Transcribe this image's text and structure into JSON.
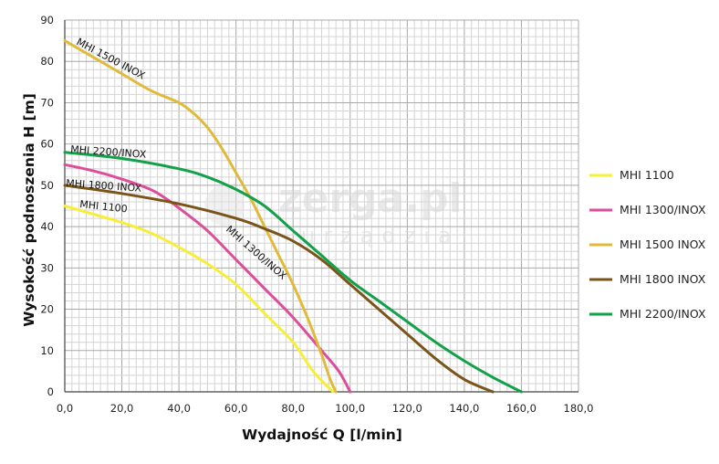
{
  "chart_data": {
    "type": "line",
    "title": "",
    "xlabel": "Wydajność Q [l/min]",
    "ylabel": "Wysokość podnoszenia H [m]",
    "xlim": [
      0,
      180
    ],
    "ylim": [
      0,
      90
    ],
    "x_ticks": [
      0,
      20,
      40,
      60,
      80,
      100,
      120,
      140,
      160,
      180
    ],
    "x_tick_labels": [
      "0,0",
      "20,0",
      "40,0",
      "60,0",
      "80,0",
      "100,0",
      "120,0",
      "140,0",
      "160,0",
      "180,0"
    ],
    "y_ticks": [
      0,
      10,
      20,
      30,
      40,
      50,
      60,
      70,
      80,
      90
    ],
    "y_tick_labels": [
      "0",
      "10",
      "20",
      "30",
      "40",
      "50",
      "60",
      "70",
      "80",
      "90"
    ],
    "grid": true,
    "legend_position": "right",
    "series": [
      {
        "name": "MHI 1100",
        "curve_label": "MHI 1100",
        "color": "#f7ee3a",
        "points": [
          [
            0,
            45
          ],
          [
            10,
            43
          ],
          [
            20,
            41
          ],
          [
            30,
            38.5
          ],
          [
            40,
            35
          ],
          [
            50,
            31
          ],
          [
            60,
            26
          ],
          [
            70,
            19
          ],
          [
            80,
            12
          ],
          [
            87,
            5
          ],
          [
            94,
            0
          ]
        ]
      },
      {
        "name": "MHI 1300/INOX",
        "curve_label": "MHI 1300/INOX",
        "color": "#dc4e9a",
        "points": [
          [
            0,
            55
          ],
          [
            10,
            53.5
          ],
          [
            20,
            51.5
          ],
          [
            30,
            49
          ],
          [
            35,
            47
          ],
          [
            40,
            44.5
          ],
          [
            50,
            39
          ],
          [
            60,
            32
          ],
          [
            70,
            25
          ],
          [
            80,
            18
          ],
          [
            90,
            10
          ],
          [
            96,
            5
          ],
          [
            100,
            0
          ]
        ]
      },
      {
        "name": "MHI 1500 INOX",
        "curve_label": "MHI 1500 INOX",
        "color": "#e0ba3a",
        "points": [
          [
            0,
            85
          ],
          [
            10,
            81
          ],
          [
            20,
            77
          ],
          [
            30,
            73
          ],
          [
            40,
            70
          ],
          [
            45,
            67.5
          ],
          [
            50,
            64
          ],
          [
            55,
            59
          ],
          [
            60,
            53
          ],
          [
            65,
            47
          ],
          [
            70,
            40
          ],
          [
            75,
            33
          ],
          [
            80,
            26
          ],
          [
            85,
            18
          ],
          [
            90,
            9
          ],
          [
            93,
            3
          ],
          [
            95,
            0
          ]
        ]
      },
      {
        "name": "MHI 1800 INOX",
        "curve_label": "MHI 1800 INOX",
        "color": "#7a5419",
        "points": [
          [
            0,
            50
          ],
          [
            20,
            48
          ],
          [
            40,
            45.5
          ],
          [
            60,
            42
          ],
          [
            70,
            39.5
          ],
          [
            80,
            36.5
          ],
          [
            90,
            32
          ],
          [
            100,
            26
          ],
          [
            110,
            20
          ],
          [
            120,
            14
          ],
          [
            130,
            8
          ],
          [
            140,
            3
          ],
          [
            150,
            0
          ]
        ]
      },
      {
        "name": "MHI 2200/INOX",
        "curve_label": "MHI 2200/INOX",
        "color": "#12a049",
        "points": [
          [
            0,
            58
          ],
          [
            20,
            56.5
          ],
          [
            40,
            54
          ],
          [
            50,
            52
          ],
          [
            60,
            49
          ],
          [
            70,
            45
          ],
          [
            80,
            39
          ],
          [
            90,
            33
          ],
          [
            100,
            27
          ],
          [
            110,
            22
          ],
          [
            120,
            17
          ],
          [
            130,
            12
          ],
          [
            140,
            7.5
          ],
          [
            150,
            3.5
          ],
          [
            160,
            0
          ]
        ]
      }
    ]
  },
  "watermark": {
    "main": "zerga.pl",
    "sub": "urządzia"
  }
}
